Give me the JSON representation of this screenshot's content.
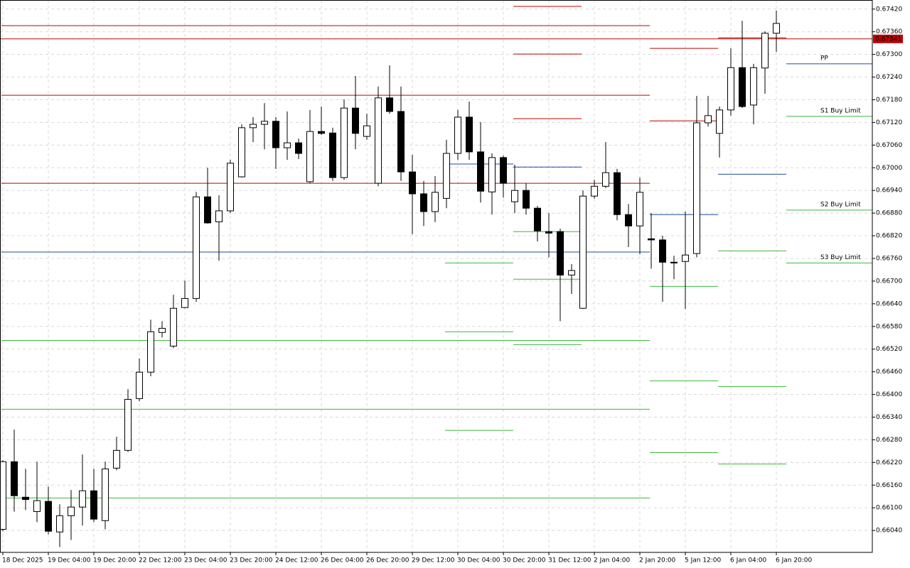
{
  "chart_data": {
    "type": "candlestick",
    "categories": [
      "18 Dec 2025",
      null,
      null,
      null,
      "19 Dec 04:00",
      null,
      null,
      null,
      "19 Dec 20:00",
      null,
      null,
      null,
      "22 Dec 12:00",
      null,
      null,
      null,
      "23 Dec 04:00",
      null,
      null,
      null,
      "23 Dec 20:00",
      null,
      null,
      null,
      "24 Dec 12:00",
      null,
      null,
      null,
      "26 Dec 04:00",
      null,
      null,
      null,
      "26 Dec 20:00",
      null,
      null,
      null,
      "29 Dec 12:00",
      null,
      null,
      null,
      "30 Dec 04:00",
      null,
      null,
      null,
      "30 Dec 20:00",
      null,
      null,
      null,
      "31 Dec 12:00",
      null,
      null,
      null,
      "2 Jan 04:00",
      null,
      null,
      null,
      "2 Jan 20:00",
      null,
      null,
      null,
      "5 Jan 12:00",
      null,
      null,
      null,
      "6 Jan 04:00",
      null,
      null,
      null,
      "6 Jan 20:00"
    ],
    "open": [
      0.66043,
      0.66222,
      0.66128,
      0.6609,
      0.66117,
      0.66036,
      0.66079,
      0.66102,
      0.66145,
      0.66066,
      0.66205,
      0.66252,
      0.66389,
      0.66459,
      0.66564,
      0.66528,
      0.6663,
      0.66654,
      0.66923,
      0.66857,
      0.66886,
      0.66976,
      0.67106,
      0.67115,
      0.67123,
      0.67053,
      0.67066,
      0.66963,
      0.67096,
      0.67092,
      0.66974,
      0.67158,
      0.67083,
      0.66959,
      0.67185,
      0.67149,
      0.66989,
      0.66931,
      0.66884,
      0.66919,
      0.67038,
      0.67134,
      0.67042,
      0.66936,
      0.67027,
      0.6691,
      0.6694,
      0.66893,
      0.66831,
      0.66831,
      0.66716,
      0.66628,
      0.66925,
      0.66951,
      0.66987,
      0.66876,
      0.66846,
      0.66812,
      0.66809,
      0.6675,
      0.66752,
      0.66773,
      0.67119,
      0.67091,
      0.67153,
      0.67265,
      0.67166,
      0.67264,
      0.67356
    ],
    "high": [
      0.66226,
      0.66307,
      0.66203,
      0.66222,
      0.66156,
      0.66109,
      0.66147,
      0.66241,
      0.66203,
      0.66222,
      0.66288,
      0.66414,
      0.66495,
      0.66598,
      0.66594,
      0.66664,
      0.66701,
      0.66936,
      0.67,
      0.66927,
      0.67021,
      0.67115,
      0.67134,
      0.67171,
      0.67134,
      0.67149,
      0.67077,
      0.67153,
      0.67162,
      0.67106,
      0.67181,
      0.67243,
      0.67143,
      0.67215,
      0.67271,
      0.67215,
      0.67034,
      0.66965,
      0.66978,
      0.67074,
      0.67153,
      0.67175,
      0.67121,
      0.67038,
      0.67032,
      0.67008,
      0.66959,
      0.66899,
      0.6688,
      0.66839,
      0.66745,
      0.6694,
      0.66968,
      0.67068,
      0.66997,
      0.66904,
      0.66974,
      0.6688,
      0.6682,
      0.66767,
      0.66884,
      0.6719,
      0.6719,
      0.67162,
      0.67316,
      0.67389,
      0.67275,
      0.67361,
      0.67416
    ],
    "low": [
      0.66038,
      0.6609,
      0.66094,
      0.66062,
      0.6603,
      0.65996,
      0.66015,
      0.66053,
      0.66062,
      0.66043,
      0.66199,
      0.66248,
      0.66382,
      0.66448,
      0.66551,
      0.66523,
      0.66628,
      0.66645,
      0.66852,
      0.66754,
      0.6688,
      0.66974,
      0.67068,
      0.67049,
      0.66997,
      0.67021,
      0.67023,
      0.66959,
      0.67087,
      0.66965,
      0.66968,
      0.67049,
      0.67074,
      0.66951,
      0.67143,
      0.66965,
      0.66824,
      0.66846,
      0.66856,
      0.66893,
      0.67021,
      0.67021,
      0.66908,
      0.66876,
      0.66921,
      0.6688,
      0.66876,
      0.66805,
      0.66763,
      0.66594,
      0.66666,
      0.66626,
      0.66918,
      0.66946,
      0.66861,
      0.6679,
      0.66771,
      0.66733,
      0.66645,
      0.66705,
      0.66626,
      0.66763,
      0.67109,
      0.67027,
      0.67138,
      0.67158,
      0.67115,
      0.67196,
      0.67307
    ],
    "close": [
      0.66222,
      0.66132,
      0.66122,
      0.66119,
      0.66038,
      0.66079,
      0.66102,
      0.66145,
      0.6607,
      0.66203,
      0.66252,
      0.66387,
      0.66459,
      0.66566,
      0.66575,
      0.66628,
      0.66654,
      0.66923,
      0.66854,
      0.66886,
      0.67012,
      0.67106,
      0.67115,
      0.67123,
      0.67053,
      0.67066,
      0.67038,
      0.67096,
      0.67091,
      0.66974,
      0.67158,
      0.67091,
      0.67111,
      0.67185,
      0.67149,
      0.66989,
      0.66931,
      0.66884,
      0.66935,
      0.67038,
      0.67134,
      0.67042,
      0.66938,
      0.67027,
      0.66959,
      0.6694,
      0.66893,
      0.66833,
      0.66827,
      0.66716,
      0.66728,
      0.66925,
      0.66951,
      0.66987,
      0.66876,
      0.66846,
      0.66935,
      0.66809,
      0.6675,
      0.66748,
      0.66769,
      0.67119,
      0.67138,
      0.67153,
      0.67265,
      0.67162,
      0.67265,
      0.67356,
      0.67382
    ],
    "up_color": "#ffffff",
    "down_color": "#000000",
    "ylim": [
      0.65982,
      0.67444
    ],
    "yticks": [
      {
        "value": 0.6742,
        "label": "0.67420"
      },
      {
        "value": 0.6736,
        "label": "0.67360"
      },
      {
        "value": 0.673,
        "label": "0.67300"
      },
      {
        "value": 0.6724,
        "label": "0.67240"
      },
      {
        "value": 0.6718,
        "label": "0.67180"
      },
      {
        "value": 0.6712,
        "label": "0.67120"
      },
      {
        "value": 0.6706,
        "label": "0.67060"
      },
      {
        "value": 0.67,
        "label": "0.67000"
      },
      {
        "value": 0.6694,
        "label": "0.66940"
      },
      {
        "value": 0.6688,
        "label": "0.66880"
      },
      {
        "value": 0.6682,
        "label": "0.66820"
      },
      {
        "value": 0.6676,
        "label": "0.66760"
      },
      {
        "value": 0.667,
        "label": "0.66700"
      },
      {
        "value": 0.6664,
        "label": "0.66640"
      },
      {
        "value": 0.6658,
        "label": "0.66580"
      },
      {
        "value": 0.6652,
        "label": "0.66520"
      },
      {
        "value": 0.6646,
        "label": "0.66460"
      },
      {
        "value": 0.664,
        "label": "0.66400"
      },
      {
        "value": 0.6634,
        "label": "0.66340"
      },
      {
        "value": 0.6628,
        "label": "0.66280"
      },
      {
        "value": 0.6622,
        "label": "0.66220"
      },
      {
        "value": 0.6616,
        "label": "0.66160"
      },
      {
        "value": 0.661,
        "label": "0.66100"
      },
      {
        "value": 0.6604,
        "label": "0.66040"
      }
    ],
    "grid": true,
    "bid": 0.67341,
    "bid_color": "#c00000",
    "level_groups": [
      {
        "from": 0,
        "to": 57,
        "levels": [
          {
            "value": 0.67376,
            "color": "#c00000"
          },
          {
            "value": 0.67192,
            "color": "#c00000"
          },
          {
            "value": 0.66959,
            "color": "#c00000"
          },
          {
            "value": 0.66777,
            "color": "#1f4e99"
          },
          {
            "value": 0.66543,
            "color": "#3cb83c"
          },
          {
            "value": 0.66361,
            "color": "#3cb83c"
          },
          {
            "value": 0.66126,
            "color": "#3cb83c"
          }
        ]
      },
      {
        "from": 39,
        "to": 45,
        "levels": [
          {
            "value": 0.6701,
            "color": "#1f4e99"
          },
          {
            "value": 0.66748,
            "color": "#3cb83c"
          },
          {
            "value": 0.66566,
            "color": "#3cb83c"
          },
          {
            "value": 0.66305,
            "color": "#3cb83c"
          }
        ]
      },
      {
        "from": 45,
        "to": 51,
        "levels": [
          {
            "value": 0.67427,
            "color": "#c00000"
          },
          {
            "value": 0.67301,
            "color": "#c00000"
          },
          {
            "value": 0.6713,
            "color": "#c00000"
          },
          {
            "value": 0.67002,
            "color": "#1f4e99"
          },
          {
            "value": 0.66831,
            "color": "#3cb83c"
          },
          {
            "value": 0.66705,
            "color": "#3cb83c"
          },
          {
            "value": 0.66532,
            "color": "#3cb83c"
          }
        ]
      },
      {
        "from": 57,
        "to": 63,
        "levels": [
          {
            "value": 0.67316,
            "color": "#c00000"
          },
          {
            "value": 0.67124,
            "color": "#c00000"
          },
          {
            "value": 0.66876,
            "color": "#1f4e99"
          },
          {
            "value": 0.66686,
            "color": "#3cb83c"
          },
          {
            "value": 0.66436,
            "color": "#3cb83c"
          },
          {
            "value": 0.66246,
            "color": "#3cb83c"
          }
        ]
      },
      {
        "from": 63,
        "to": 69,
        "levels": [
          {
            "value": 0.67344,
            "color": "#c00000"
          },
          {
            "value": 0.66983,
            "color": "#1f4e99"
          },
          {
            "value": 0.6678,
            "color": "#3cb83c"
          },
          {
            "value": 0.66421,
            "color": "#3cb83c"
          },
          {
            "value": 0.66216,
            "color": "#3cb83c"
          }
        ]
      },
      {
        "from": 69,
        "levels": [
          {
            "value": 0.67275,
            "color": "#1f4e99",
            "label": "PP"
          },
          {
            "value": 0.67136,
            "color": "#3cb83c",
            "label": "S1 Buy Limit"
          },
          {
            "value": 0.66888,
            "color": "#3cb83c",
            "label": "S2 Buy Limit"
          },
          {
            "value": 0.66748,
            "color": "#3cb83c",
            "label": "S3 Buy Limit"
          }
        ]
      }
    ]
  }
}
